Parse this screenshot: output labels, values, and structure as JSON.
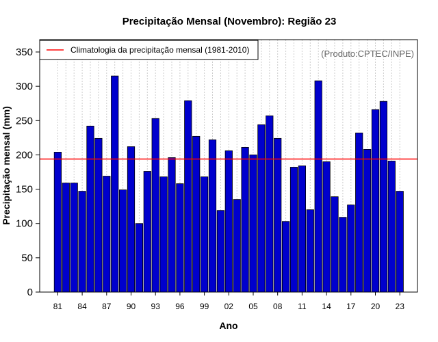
{
  "chart_data": {
    "type": "bar",
    "title": "Precipitação Mensal (Novembro): Região 23",
    "xlabel": "Ano",
    "ylabel": "Precipitação mensal (mm)",
    "ylim": [
      0,
      360
    ],
    "yticks": [
      0,
      50,
      100,
      150,
      200,
      250,
      300,
      350
    ],
    "categories": [
      "81",
      "82",
      "83",
      "84",
      "85",
      "86",
      "87",
      "88",
      "89",
      "90",
      "91",
      "92",
      "93",
      "94",
      "95",
      "96",
      "97",
      "98",
      "99",
      "00",
      "01",
      "02",
      "03",
      "04",
      "05",
      "06",
      "07",
      "08",
      "09",
      "10",
      "11",
      "12",
      "13",
      "14",
      "15",
      "16",
      "17",
      "18",
      "19",
      "20",
      "21",
      "22",
      "23"
    ],
    "xtick_labels": [
      "81",
      "84",
      "87",
      "90",
      "93",
      "96",
      "99",
      "02",
      "05",
      "08",
      "11",
      "14",
      "17",
      "20",
      "23"
    ],
    "values": [
      204,
      159,
      159,
      147,
      242,
      224,
      169,
      315,
      149,
      212,
      100,
      176,
      253,
      168,
      196,
      158,
      279,
      227,
      168,
      222,
      119,
      206,
      135,
      211,
      200,
      244,
      257,
      224,
      103,
      182,
      184,
      120,
      308,
      190,
      139,
      109,
      127,
      232,
      208,
      266,
      278,
      191,
      147
    ],
    "reference_line": {
      "value": 194,
      "label": "Climatologia da precipitação mensal (1981-2010)",
      "color": "#ff0000"
    },
    "bar_color": "#0000cd",
    "bar_edge_color": "#000000",
    "grid_color": "#cccccc",
    "legend": {
      "location": "top-left",
      "entries": [
        "Climatologia da precipitação mensal (1981-2010)"
      ]
    },
    "source_note": "(Produto:CPTEC/INPE)"
  }
}
